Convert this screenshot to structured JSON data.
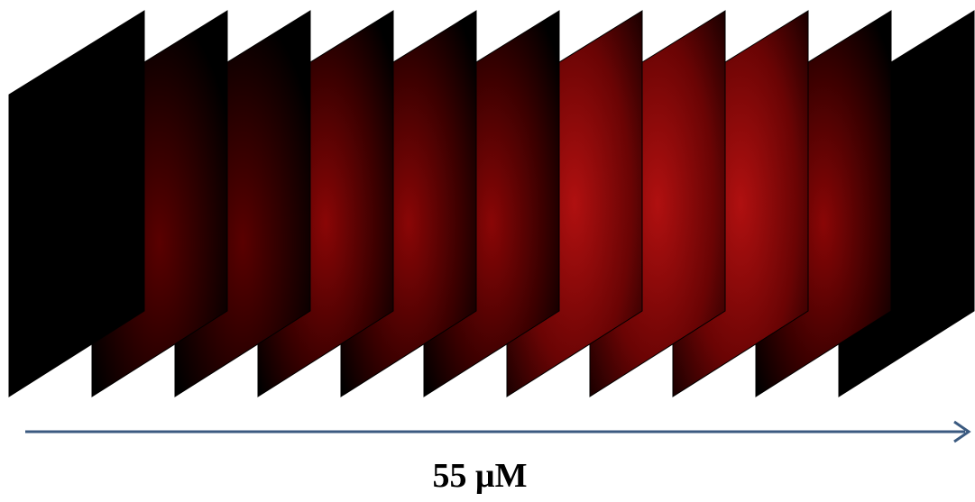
{
  "caption": "55 μM"
}
